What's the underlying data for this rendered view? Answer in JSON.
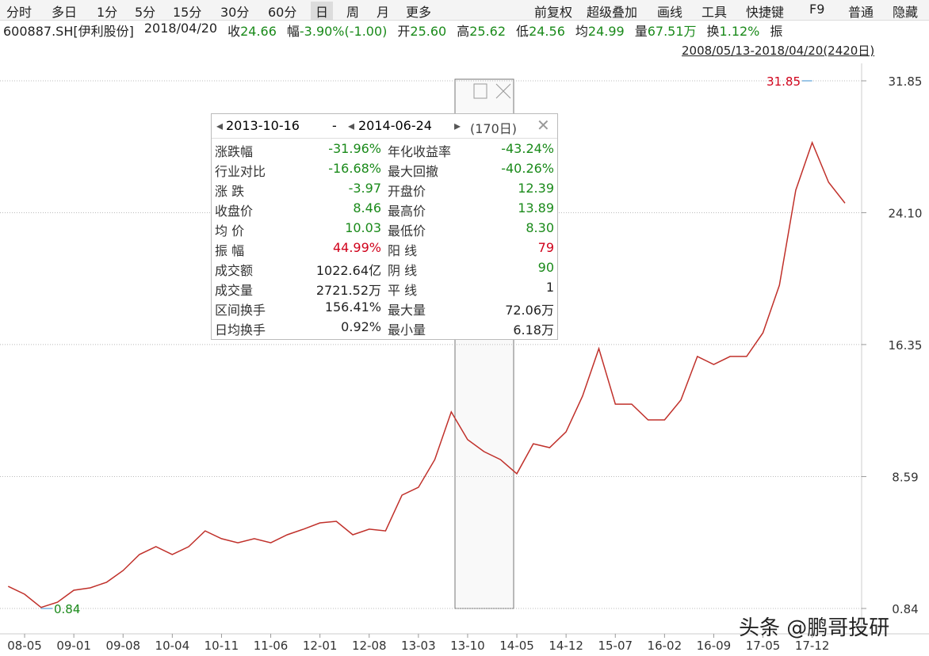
{
  "toolbar": {
    "left": [
      "分时",
      "多日",
      "1分",
      "5分",
      "15分",
      "30分",
      "60分",
      "日",
      "周",
      "月",
      "更多"
    ],
    "right": [
      "前复权",
      "超级叠加",
      "画线",
      "工具",
      "快捷键",
      "F9",
      "普通",
      "隐藏"
    ]
  },
  "infobar": [
    {
      "label": "600887.SH[伊利股份]"
    },
    {
      "label": "2018/04/20"
    },
    {
      "label": "收",
      "value": "24.66"
    },
    {
      "label": "幅",
      "value": "-3.90%(-1.00)"
    },
    {
      "label": "开",
      "value": "25.60"
    },
    {
      "label": "高",
      "value": "25.62"
    },
    {
      "label": "低",
      "value": "24.56"
    },
    {
      "label": "均",
      "value": "24.99"
    },
    {
      "label": "量",
      "value": "67.51万"
    },
    {
      "label": "换",
      "value": "1.12%"
    },
    {
      "label": "振"
    }
  ],
  "range": "2008/05/13-2018/04/20(2420日)",
  "popup": {
    "start": "2013-10-16",
    "dash": "-",
    "end": "2014-06-24",
    "days": "(170日)",
    "rows": [
      [
        "涨跌幅",
        "-31.96%",
        "年化收益率",
        "-43.24%"
      ],
      [
        "行业对比",
        "-16.68%",
        "最大回撤",
        "-40.26%"
      ],
      [
        "涨 跌",
        "-3.97",
        "开盘价",
        "12.39"
      ],
      [
        "收盘价",
        "8.46",
        "最高价",
        "13.89"
      ],
      [
        "均 价",
        "10.03",
        "最低价",
        "8.30"
      ],
      [
        "振 幅",
        "44.99%",
        "阳 线",
        "79"
      ],
      [
        "成交额",
        "1022.64亿",
        "阴 线",
        "90"
      ],
      [
        "成交量",
        "2721.52万",
        "平 线",
        "1"
      ],
      [
        "区间换手",
        "156.41%",
        "最大量",
        "72.06万"
      ],
      [
        "日均换手",
        "0.92%",
        "最小量",
        "6.18万"
      ]
    ]
  },
  "watermark": "头条 @鹏哥投研",
  "chart_data": {
    "type": "line",
    "color": "#c0302a",
    "categories": [
      null,
      "08-05",
      null,
      null,
      "09-01",
      null,
      null,
      "09-08",
      null,
      null,
      "10-04",
      null,
      null,
      "10-11",
      null,
      null,
      "11-06",
      null,
      null,
      "12-01",
      null,
      null,
      "12-08",
      null,
      null,
      "13-03",
      null,
      null,
      "13-10",
      null,
      null,
      "14-05",
      null,
      null,
      "14-12",
      null,
      null,
      "15-07",
      null,
      null,
      "16-02",
      null,
      null,
      "16-09",
      null,
      null,
      "17-05",
      null,
      null,
      "17-12",
      null,
      null
    ],
    "values": [
      2.14,
      1.68,
      0.9,
      1.21,
      1.91,
      2.05,
      2.38,
      3.07,
      4.01,
      4.47,
      4.01,
      4.47,
      5.4,
      4.94,
      4.7,
      4.94,
      4.7,
      5.17,
      5.5,
      5.87,
      5.96,
      5.17,
      5.5,
      5.4,
      7.5,
      7.96,
      9.59,
      12.39,
      10.76,
      10.06,
      9.59,
      8.76,
      10.52,
      10.29,
      11.22,
      13.32,
      16.11,
      12.85,
      12.85,
      11.92,
      11.92,
      13.09,
      15.65,
      15.18,
      15.65,
      15.65,
      17.04,
      19.84,
      25.42,
      28.22,
      25.89,
      24.66
    ],
    "ylim": [
      0.84,
      31.85
    ],
    "yticks": [
      0.84,
      8.59,
      16.35,
      {
        "value": 24.1,
        "label": "24.10"
      },
      31.85
    ],
    "grid": true,
    "annotations": [
      {
        "text": "31.85",
        "color": "#d0021b"
      },
      {
        "text": "0.84",
        "color": "#1a8a1a"
      }
    ]
  }
}
